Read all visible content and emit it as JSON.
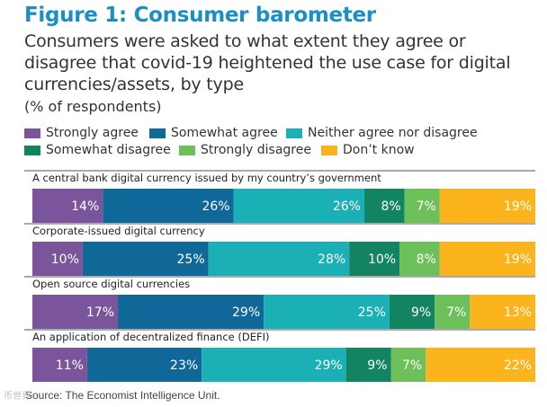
{
  "chart_data": {
    "type": "bar",
    "orientation": "horizontal",
    "stacked": true,
    "title": "Figure 1: Consumer barometer",
    "subtitle": "Consumers were asked to what extent they agree or disagree that covid-19 heightened the use case for digital currencies/assets, by type",
    "unit_label": "(% of respondents)",
    "categories": [
      "A central bank digital currency issued by my country’s government",
      "Corporate-issued digital currency",
      "Open source digital currencies",
      "An application of decentralized finance (DEFI)"
    ],
    "series": [
      {
        "name": "Strongly agree",
        "color": "#7a559b",
        "values": [
          14,
          10,
          17,
          11
        ]
      },
      {
        "name": "Somewhat agree",
        "color": "#0f6898",
        "values": [
          26,
          25,
          29,
          23
        ]
      },
      {
        "name": "Neither agree nor disagree",
        "color": "#1bb0b5",
        "values": [
          26,
          28,
          25,
          29
        ]
      },
      {
        "name": "Somewhat disagree",
        "color": "#138462",
        "values": [
          8,
          10,
          9,
          9
        ]
      },
      {
        "name": "Strongly disagree",
        "color": "#6dbf59",
        "values": [
          7,
          8,
          7,
          7
        ]
      },
      {
        "name": "Don’t know",
        "color": "#fbb41c",
        "values": [
          19,
          19,
          13,
          22
        ]
      }
    ],
    "value_suffix": "%",
    "xlim": [
      0,
      100
    ],
    "source": "Source: The Economist Intelligence Unit."
  },
  "brand": {
    "watermark": "币世界"
  }
}
